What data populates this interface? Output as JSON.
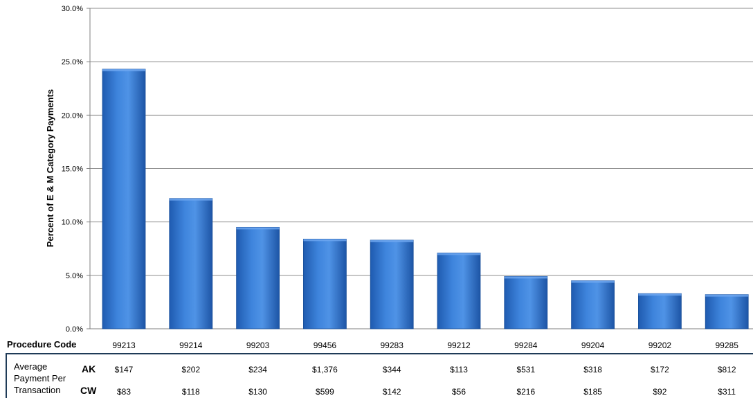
{
  "chart_data": {
    "type": "bar",
    "ylabel": "Percent of E & M Category Payments",
    "xlabel": "Procedure Code",
    "ylim": [
      0,
      30
    ],
    "yticks": [
      "0.0%",
      "5.0%",
      "10.0%",
      "15.0%",
      "20.0%",
      "25.0%",
      "30.0%"
    ],
    "grid": true,
    "categories": [
      "99213",
      "99214",
      "99203",
      "99456",
      "99283",
      "99212",
      "99284",
      "99204",
      "99202",
      "99285"
    ],
    "values": [
      24.3,
      12.2,
      9.5,
      8.4,
      8.3,
      7.1,
      4.9,
      4.5,
      3.3,
      3.2
    ],
    "bar_color": "#2E6FC9",
    "payment_table": {
      "label_lines": [
        "Average",
        "Payment Per",
        "Transaction"
      ],
      "rows": [
        {
          "key": "AK",
          "values": [
            "$147",
            "$202",
            "$234",
            "$1,376",
            "$344",
            "$113",
            "$531",
            "$318",
            "$172",
            "$812"
          ]
        },
        {
          "key": "CW",
          "values": [
            "$83",
            "$118",
            "$130",
            "$599",
            "$142",
            "$56",
            "$216",
            "$185",
            "$92",
            "$311"
          ]
        }
      ]
    }
  }
}
